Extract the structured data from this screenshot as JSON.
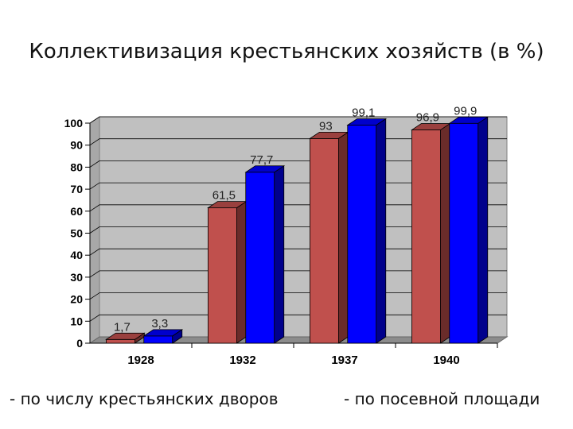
{
  "chart_data": {
    "type": "bar",
    "title": "Коллективизация крестьянских хозяйств (в %)",
    "categories": [
      "1928",
      "1932",
      "1937",
      "1940"
    ],
    "series": [
      {
        "name": "- по числу крестьянских дворов",
        "values": [
          1.7,
          61.5,
          93,
          96.9
        ],
        "labels": [
          "1,7",
          "61,5",
          "93",
          "96,9"
        ],
        "color": "#c0504d"
      },
      {
        "name": "- по посевной площади",
        "values": [
          3.3,
          77.7,
          99.1,
          99.9
        ],
        "labels": [
          "3,3",
          "77,7",
          "99,1",
          "99,9"
        ],
        "color": "#0000ff"
      }
    ],
    "yticks": [
      "0",
      "10",
      "20",
      "30",
      "40",
      "50",
      "60",
      "70",
      "80",
      "90",
      "100"
    ],
    "ylim": [
      0,
      100
    ],
    "grid": true,
    "style": "3d-columns",
    "plot_background": "#c0c0c0",
    "legend": "bottom"
  }
}
